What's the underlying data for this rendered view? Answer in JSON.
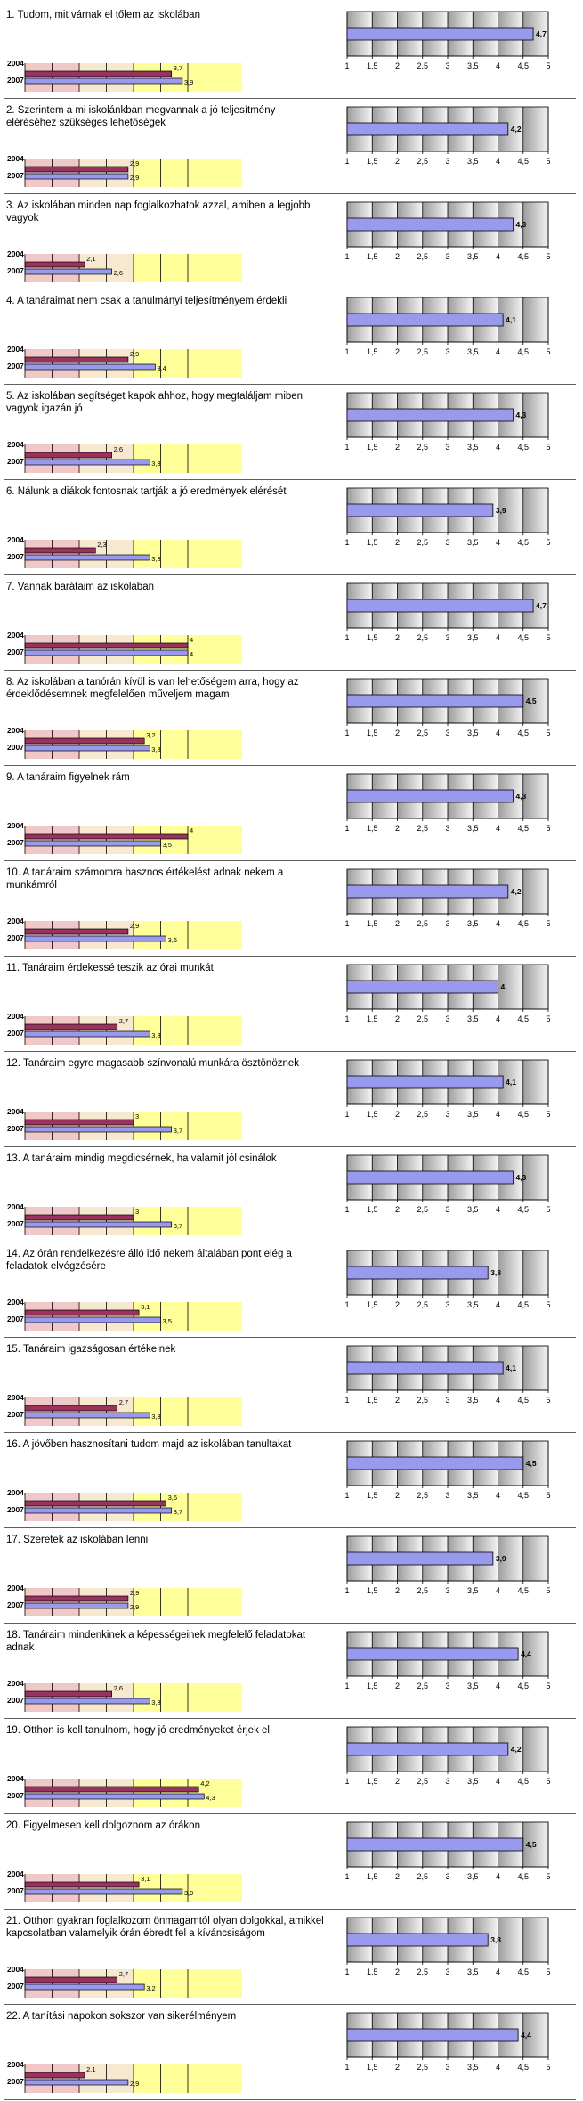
{
  "colors": {
    "bar2004": "#99335e",
    "bar2007": "#9999ee",
    "avgBar": "#9999ee",
    "zoneRed": "#f0c8c8",
    "zoneMid": "#f6e9d0",
    "zoneYellow": "#ffff99",
    "gradDark": "#9c9c9c",
    "gradLight": "#f4f4f4"
  },
  "chart_data": {
    "type": "bar",
    "left_panel": {
      "series": [
        {
          "name": "2004."
        },
        {
          "name": "2007"
        }
      ],
      "xlim": [
        1,
        5
      ]
    },
    "right_panel": {
      "xlim": [
        1,
        5
      ],
      "ticks": [
        "1",
        "1,5",
        "2",
        "2,5",
        "3",
        "3,5",
        "4",
        "4,5",
        "5"
      ]
    },
    "questions": [
      {
        "label": "1. Tudom, mit várnak el tőlem az iskolában",
        "v2004": 3.7,
        "v2004_label": "3,7",
        "v2007": 3.9,
        "v2007_label": "3,9",
        "avg": 4.7,
        "avg_label": "4,7"
      },
      {
        "label": "2. Szerintem a mi iskolánkban megvannak a jó teljesítmény eléréséhez szükséges lehetőségek",
        "v2004": 2.9,
        "v2004_label": "2,9",
        "v2007": 2.9,
        "v2007_label": "2,9",
        "avg": 4.2,
        "avg_label": "4,2"
      },
      {
        "label": "3. Az iskolában minden nap foglalkozhatok azzal, amiben a legjobb vagyok",
        "v2004": 2.1,
        "v2004_label": "2,1",
        "v2007": 2.6,
        "v2007_label": "2,6",
        "avg": 4.3,
        "avg_label": "4,3"
      },
      {
        "label": "4. A tanáraimat nem csak a tanulmányi teljesítményem érdekli",
        "v2004": 2.9,
        "v2004_label": "2,9",
        "v2007": 3.4,
        "v2007_label": "3,4",
        "avg": 4.1,
        "avg_label": "4,1"
      },
      {
        "label": "5. Az iskolában segítséget kapok ahhoz, hogy megtaláljam miben vagyok igazán jó",
        "v2004": 2.6,
        "v2004_label": "2,6",
        "v2007": 3.3,
        "v2007_label": "3,3",
        "avg": 4.3,
        "avg_label": "4,3"
      },
      {
        "label": "6. Nálunk a diákok fontosnak tartják a jó eredmények elérését",
        "v2004": 2.3,
        "v2004_label": "2,3",
        "v2007": 3.3,
        "v2007_label": "3,3",
        "avg": 3.9,
        "avg_label": "3,9"
      },
      {
        "label": "7. Vannak barátaim az iskolában",
        "v2004": 4.0,
        "v2004_label": "4",
        "v2007": 4.0,
        "v2007_label": "4",
        "avg": 4.7,
        "avg_label": "4,7"
      },
      {
        "label": "8. Az iskolában a tanórán kívül is van lehetőségem arra, hogy az érdeklődésemnek megfelelően műveljem magam",
        "v2004": 3.2,
        "v2004_label": "3,2",
        "v2007": 3.3,
        "v2007_label": "3,3",
        "avg": 4.5,
        "avg_label": "4,5"
      },
      {
        "label": "9. A tanáraim figyelnek rám",
        "v2004": 4.0,
        "v2004_label": "4",
        "v2007": 3.5,
        "v2007_label": "3,5",
        "avg": 4.3,
        "avg_label": "4,3"
      },
      {
        "label": "10. A tanáraim számomra hasznos értékelést adnak nekem a munkámról",
        "v2004": 2.9,
        "v2004_label": "2,9",
        "v2007": 3.6,
        "v2007_label": "3,6",
        "avg": 4.2,
        "avg_label": "4,2"
      },
      {
        "label": "11. Tanáraim érdekessé teszik az órai munkát",
        "v2004": 2.7,
        "v2004_label": "2,7",
        "v2007": 3.3,
        "v2007_label": "3,3",
        "avg": 4.0,
        "avg_label": "4"
      },
      {
        "label": "12. Tanáraim egyre magasabb színvonalú munkára ösztönöznek",
        "v2004": 3.0,
        "v2004_label": "3",
        "v2007": 3.7,
        "v2007_label": "3,7",
        "avg": 4.1,
        "avg_label": "4,1"
      },
      {
        "label": "13. A tanáraim mindig megdicsérnek, ha valamit jól csinálok",
        "v2004": 3.0,
        "v2004_label": "3",
        "v2007": 3.7,
        "v2007_label": "3,7",
        "avg": 4.3,
        "avg_label": "4,3"
      },
      {
        "label": "14. Az órán rendelkezésre álló idő nekem általában pont elég a feladatok elvégzésére",
        "v2004": 3.1,
        "v2004_label": "3,1",
        "v2007": 3.5,
        "v2007_label": "3,5",
        "avg": 3.8,
        "avg_label": "3,8"
      },
      {
        "label": "15. Tanáraim igazságosan értékelnek",
        "v2004": 2.7,
        "v2004_label": "2,7",
        "v2007": 3.3,
        "v2007_label": "3,3",
        "avg": 4.1,
        "avg_label": "4,1"
      },
      {
        "label": "16. A jövőben hasznosítani tudom majd az iskolában tanultakat",
        "v2004": 3.6,
        "v2004_label": "3,6",
        "v2007": 3.7,
        "v2007_label": "3,7",
        "avg": 4.5,
        "avg_label": "4,5"
      },
      {
        "label": "17. Szeretek az iskolában lenni",
        "v2004": 2.9,
        "v2004_label": "2,9",
        "v2007": 2.9,
        "v2007_label": "2,9",
        "avg": 3.9,
        "avg_label": "3,9"
      },
      {
        "label": "18. Tanáraim mindenkinek a képességeinek megfelelő feladatokat adnak",
        "v2004": 2.6,
        "v2004_label": "2,6",
        "v2007": 3.3,
        "v2007_label": "3,3",
        "avg": 4.4,
        "avg_label": "4,4"
      },
      {
        "label": "19. Otthon is kell tanulnom, hogy jó eredményeket érjek el",
        "v2004": 4.2,
        "v2004_label": "4,2",
        "v2007": 4.3,
        "v2007_label": "4,3",
        "avg": 4.2,
        "avg_label": "4,2"
      },
      {
        "label": "20. Figyelmesen kell dolgoznom az órákon",
        "v2004": 3.1,
        "v2004_label": "3,1",
        "v2007": 3.9,
        "v2007_label": "3,9",
        "avg": 4.5,
        "avg_label": "4,5"
      },
      {
        "label": "21. Otthon gyakran foglalkozom önmagamtól olyan dolgokkal, amikkel kapcsolatban valamelyik órán ébredt fel a kíváncsiságom",
        "v2004": 2.7,
        "v2004_label": "2,7",
        "v2007": 3.2,
        "v2007_label": "3,2",
        "avg": 3.8,
        "avg_label": "3,8"
      },
      {
        "label": "22. A tanítási napokon sokszor van sikerélményem",
        "v2004": 2.1,
        "v2004_label": "2,1",
        "v2007": 2.9,
        "v2007_label": "2,9",
        "avg": 4.4,
        "avg_label": "4,4"
      }
    ]
  }
}
